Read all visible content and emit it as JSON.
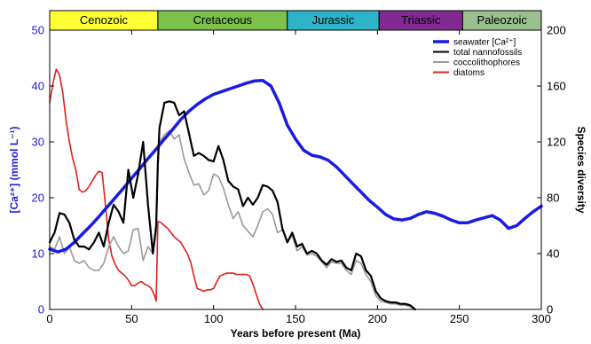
{
  "chart_data": {
    "type": "line",
    "xlabel": "Years before present (Ma)",
    "ylabel_left": "[Ca²⁺] (mmol L⁻¹)",
    "ylabel_right": "Species diversity",
    "xlim": [
      0,
      300
    ],
    "ylim_left": [
      0,
      50
    ],
    "ylim_right": [
      0,
      200
    ],
    "xticks": [
      0,
      50,
      100,
      150,
      200,
      250,
      300
    ],
    "yticks_left": [
      0,
      10,
      20,
      30,
      40,
      50
    ],
    "yticks_right": [
      0,
      40,
      80,
      120,
      160,
      200
    ],
    "left_axis_color": "#1f1fd6",
    "grid": false,
    "legend_position": "top-right",
    "eras": [
      {
        "name": "Cenozoic",
        "start": 0,
        "end": 66,
        "color": "#ffff33"
      },
      {
        "name": "Cretaceous",
        "start": 66,
        "end": 145,
        "color": "#7cc24a"
      },
      {
        "name": "Jurassic",
        "start": 145,
        "end": 201,
        "color": "#2eb4c8"
      },
      {
        "name": "Triassic",
        "start": 201,
        "end": 252,
        "color": "#812b92"
      },
      {
        "name": "Paleozoic",
        "start": 252,
        "end": 300,
        "color": "#99c08d"
      }
    ],
    "series": [
      {
        "name": "seawater [Ca²⁺]",
        "axis": "left",
        "color": "#1a1ae6",
        "width": 3.5,
        "x": [
          0,
          5,
          10,
          15,
          20,
          25,
          30,
          35,
          40,
          45,
          50,
          55,
          60,
          65,
          70,
          75,
          80,
          85,
          90,
          95,
          100,
          105,
          110,
          115,
          120,
          125,
          130,
          135,
          140,
          145,
          150,
          155,
          160,
          165,
          170,
          175,
          180,
          185,
          190,
          195,
          200,
          205,
          210,
          215,
          220,
          225,
          230,
          235,
          240,
          245,
          250,
          255,
          260,
          265,
          270,
          275,
          280,
          285,
          290,
          295,
          300
        ],
        "y": [
          10.8,
          10.3,
          10.8,
          12.0,
          13.5,
          15.0,
          16.6,
          18.3,
          20.0,
          21.7,
          23.5,
          25.2,
          27.0,
          28.7,
          30.5,
          32.2,
          34.0,
          35.5,
          36.7,
          37.7,
          38.5,
          39.0,
          39.5,
          40.0,
          40.5,
          40.9,
          41.0,
          40.0,
          37.0,
          33.0,
          30.5,
          28.5,
          27.6,
          27.3,
          26.7,
          25.5,
          24.0,
          22.5,
          21.0,
          19.5,
          18.3,
          17.0,
          16.2,
          16.0,
          16.3,
          17.0,
          17.5,
          17.2,
          16.7,
          16.0,
          15.5,
          15.5,
          16.0,
          16.4,
          16.8,
          16.0,
          14.5,
          15.0,
          16.3,
          17.5,
          18.5
        ]
      },
      {
        "name": "total nannofossils",
        "axis": "right",
        "color": "#000000",
        "width": 2.2,
        "x": [
          0,
          3,
          6,
          9,
          12,
          15,
          18,
          21,
          24,
          27,
          30,
          33,
          36,
          39,
          42,
          45,
          48,
          51,
          54,
          57,
          60,
          63,
          65,
          66,
          67,
          70,
          73,
          76,
          79,
          82,
          85,
          88,
          91,
          94,
          97,
          100,
          103,
          106,
          109,
          112,
          115,
          118,
          121,
          124,
          127,
          130,
          133,
          136,
          139,
          142,
          145,
          148,
          151,
          154,
          157,
          160,
          163,
          166,
          169,
          172,
          175,
          178,
          181,
          184,
          187,
          190,
          193,
          196,
          199,
          202,
          205,
          208,
          211,
          214,
          217,
          220,
          223
        ],
        "y": [
          48,
          55,
          69,
          68,
          62,
          50,
          45,
          45,
          43,
          48,
          55,
          45,
          62,
          75,
          70,
          62,
          100,
          80,
          97,
          120,
          75,
          40,
          60,
          105,
          130,
          148,
          149,
          148,
          139,
          142,
          126,
          110,
          112,
          110,
          107,
          106,
          117,
          107,
          92,
          88,
          86,
          74,
          80,
          75,
          80,
          89,
          88,
          85,
          77,
          58,
          48,
          55,
          45,
          47,
          40,
          42,
          40,
          35,
          32,
          36,
          34,
          35,
          30,
          28,
          40,
          38,
          28,
          24,
          13,
          8,
          6,
          5,
          5,
          4,
          4,
          3,
          0
        ]
      },
      {
        "name": "coccolithophores",
        "axis": "right",
        "color": "#9a9a9a",
        "width": 1.6,
        "x": [
          0,
          3,
          6,
          9,
          12,
          15,
          18,
          21,
          24,
          27,
          30,
          33,
          36,
          39,
          42,
          45,
          48,
          51,
          54,
          57,
          60,
          63,
          65,
          66,
          67,
          70,
          73,
          76,
          79,
          82,
          85,
          88,
          91,
          94,
          97,
          100,
          103,
          106,
          109,
          112,
          115,
          118,
          121,
          124,
          127,
          130,
          133,
          136,
          139,
          142,
          145,
          148,
          151,
          154,
          157,
          160,
          163,
          166,
          169,
          172,
          175,
          178,
          181,
          184,
          187,
          190,
          193,
          196,
          199,
          202,
          205,
          208,
          211,
          214,
          217,
          220,
          223
        ],
        "y": [
          45,
          43,
          52,
          40,
          45,
          35,
          33,
          35,
          30,
          28,
          28,
          33,
          45,
          52,
          45,
          40,
          42,
          57,
          58,
          35,
          45,
          40,
          55,
          100,
          120,
          125,
          128,
          122,
          125,
          108,
          98,
          89,
          90,
          82,
          85,
          97,
          95,
          87,
          75,
          65,
          70,
          60,
          56,
          52,
          60,
          70,
          72,
          68,
          55,
          57,
          48,
          53,
          42,
          45,
          39,
          40,
          38,
          34,
          30,
          34,
          33,
          33,
          28,
          25,
          35,
          33,
          25,
          20,
          10,
          6,
          5,
          4,
          4,
          3,
          3,
          2,
          0
        ]
      },
      {
        "name": "diatoms",
        "axis": "right",
        "color": "#e0201c",
        "width": 1.6,
        "x": [
          0,
          2,
          4,
          6,
          8,
          10,
          12,
          14,
          16,
          18,
          20,
          22,
          24,
          26,
          28,
          30,
          32,
          34,
          36,
          38,
          40,
          42,
          44,
          46,
          48,
          50,
          52,
          54,
          56,
          58,
          60,
          62,
          64,
          65,
          66,
          68,
          70,
          72,
          74,
          76,
          78,
          80,
          82,
          84,
          86,
          88,
          90,
          92,
          94,
          96,
          98,
          100,
          102,
          104,
          106,
          108,
          110,
          112,
          114,
          116,
          118,
          120,
          122,
          124,
          126,
          128,
          130
        ],
        "y": [
          148,
          162,
          172,
          168,
          155,
          135,
          120,
          108,
          100,
          86,
          84,
          85,
          88,
          92,
          96,
          99,
          98,
          75,
          50,
          38,
          32,
          28,
          26,
          24,
          21,
          17,
          17,
          19,
          20,
          18,
          17,
          15,
          10,
          6,
          63,
          62,
          60,
          58,
          55,
          52,
          50,
          48,
          44,
          40,
          34,
          24,
          15,
          14,
          13,
          14,
          14,
          15,
          20,
          24,
          25,
          26,
          26,
          26,
          25,
          25,
          25,
          25,
          24,
          18,
          11,
          4,
          0
        ]
      }
    ]
  }
}
